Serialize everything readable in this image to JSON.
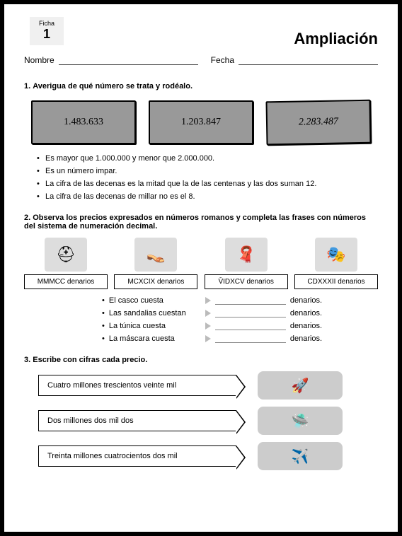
{
  "ficha": {
    "label": "Ficha",
    "number": "1"
  },
  "title": "Ampliación",
  "fields": {
    "nombre": "Nombre",
    "fecha": "Fecha"
  },
  "q1": {
    "num": "1.",
    "text": "Averigua de qué número se trata y rodéalo.",
    "numbers": [
      "1.483.633",
      "1.203.847",
      "2.283.487"
    ],
    "clues": [
      "Es mayor que 1.000.000 y menor que 2.000.000.",
      "Es un número impar.",
      "La cifra de las decenas es la mitad que la de las centenas y las dos suman 12.",
      "La cifra de las decenas de millar no es el 8."
    ]
  },
  "q2": {
    "num": "2.",
    "text": "Observa los precios expresados en números romanos y completa las frases con números del sistema de numeración decimal.",
    "items": [
      {
        "icon": "⛑",
        "label": "MMMCC denarios"
      },
      {
        "icon": "👡",
        "label": "MCXCIX denarios"
      },
      {
        "icon": "🧣",
        "label": "V̄IDXCV denarios"
      },
      {
        "icon": "🎭",
        "label": "CDXXXII denarios"
      }
    ],
    "fills": [
      {
        "text": "El casco cuesta",
        "unit": "denarios."
      },
      {
        "text": "Las sandalias cuestan",
        "unit": "denarios."
      },
      {
        "text": "La túnica cuesta",
        "unit": "denarios."
      },
      {
        "text": "La máscara cuesta",
        "unit": "denarios."
      }
    ]
  },
  "q3": {
    "num": "3.",
    "text": "Escribe con cifras cada precio.",
    "prices": [
      {
        "text": "Cuatro millones trescientos veinte mil",
        "icon": "🚀"
      },
      {
        "text": "Dos millones dos mil dos",
        "icon": "🛸"
      },
      {
        "text": "Treinta millones cuatrocientos dos mil",
        "icon": "✈️"
      }
    ]
  }
}
